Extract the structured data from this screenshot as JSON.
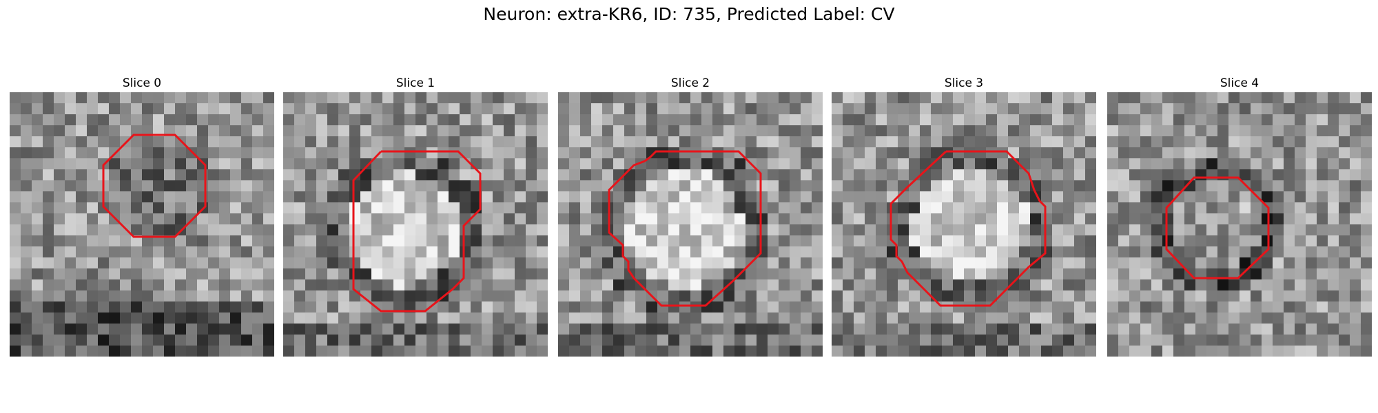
{
  "figure": {
    "title": "Neuron: extra-KR6, ID: 735, Predicted Label: CV"
  },
  "panels": [
    {
      "title": "Slice 0",
      "seed": 11,
      "ring": "dark-center"
    },
    {
      "title": "Slice 1",
      "seed": 23,
      "ring": "bright-center"
    },
    {
      "title": "Slice 2",
      "seed": 37,
      "ring": "bright-center"
    },
    {
      "title": "Slice 3",
      "seed": 41,
      "ring": "bright-center"
    },
    {
      "title": "Slice 4",
      "seed": 53,
      "ring": "dark-ring"
    }
  ],
  "colors": {
    "contour": "#e8141a",
    "background": "#ffffff"
  }
}
